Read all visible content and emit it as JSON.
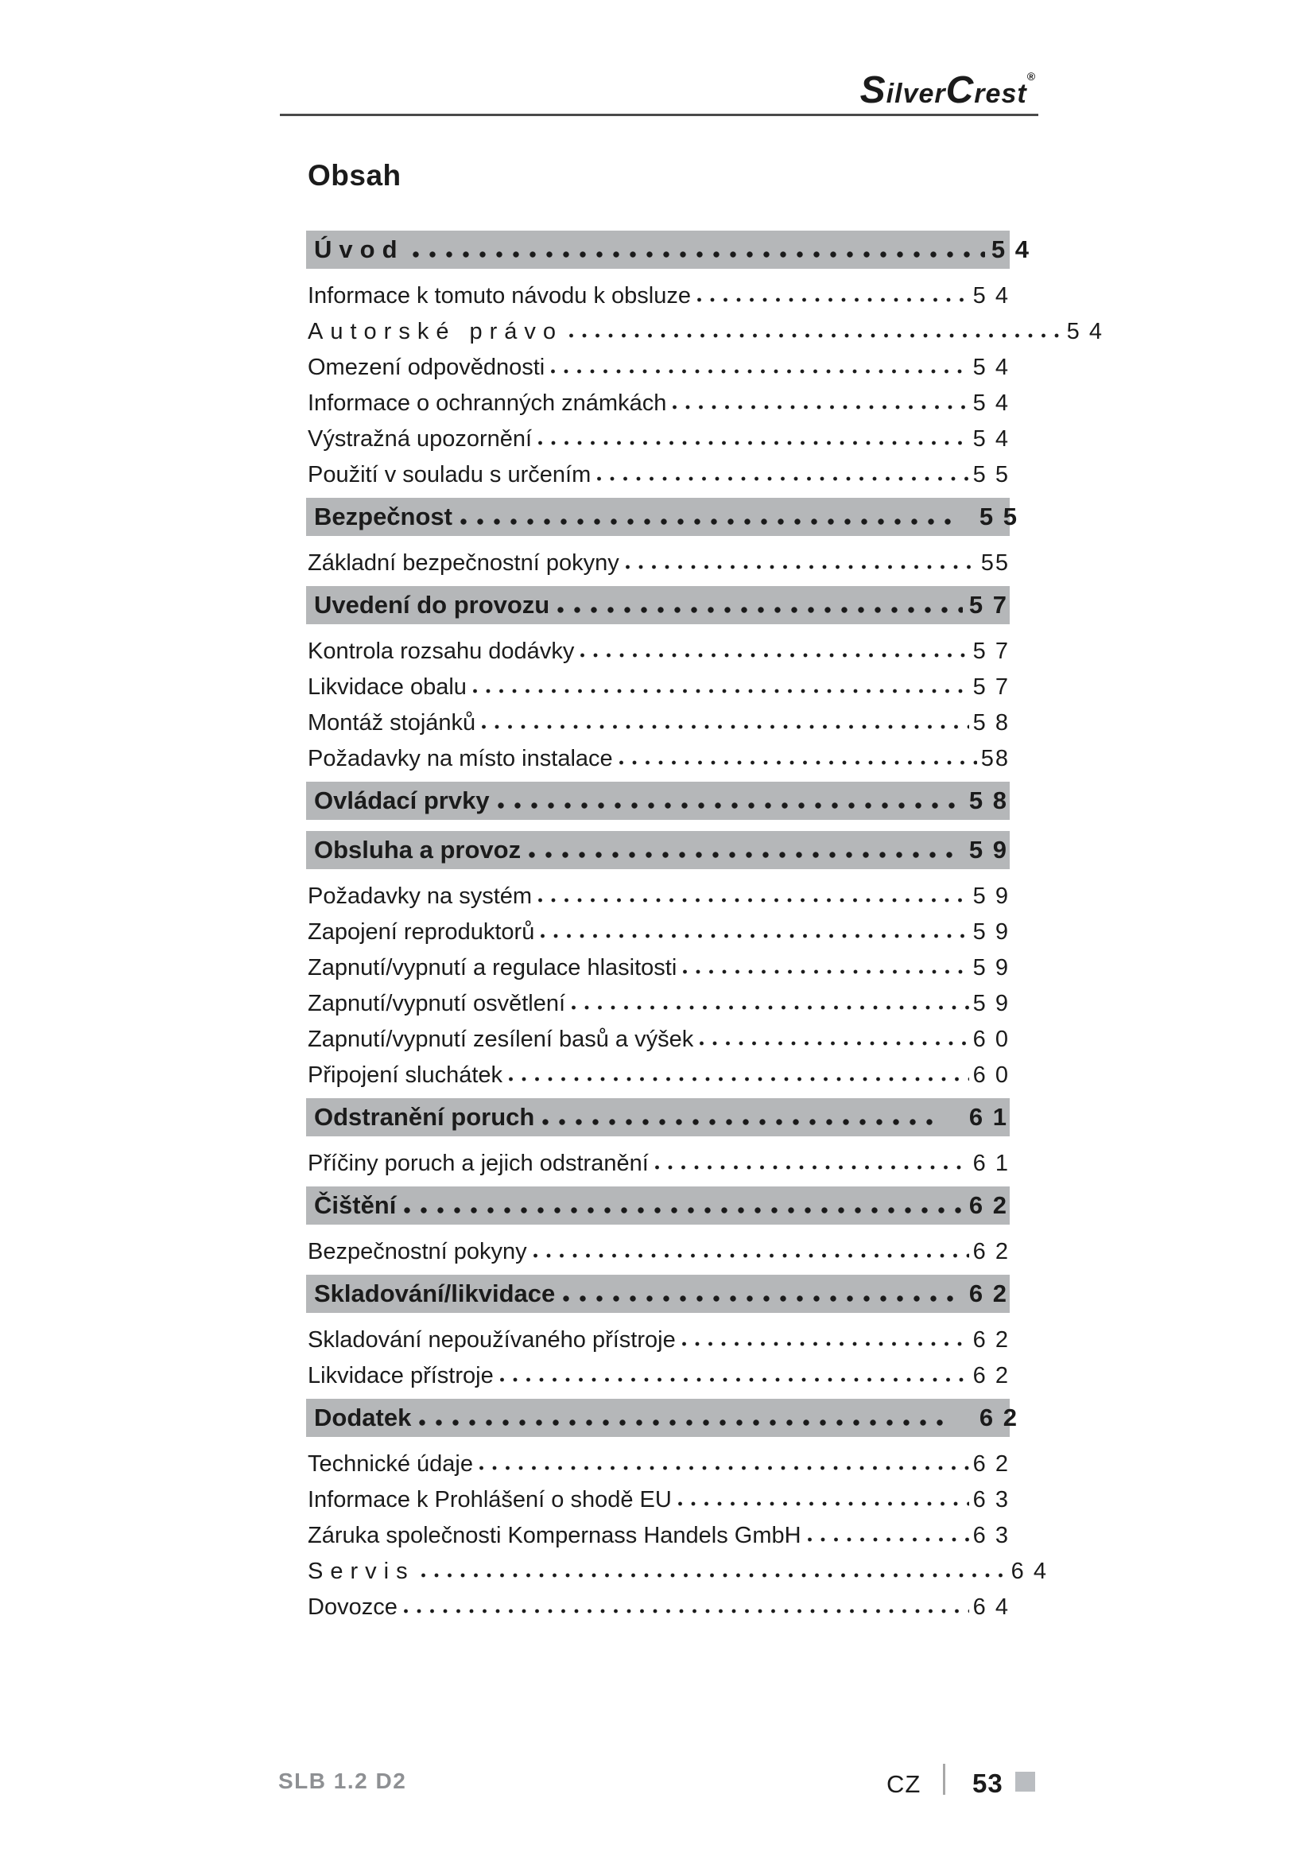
{
  "page": {
    "brand": {
      "logo_part1": "Silver",
      "logo_part2": "Crest",
      "registered": "®"
    },
    "title": "Obsah",
    "colors": {
      "bar_gray": "#b5b7b9",
      "text_black": "#1b1b1b",
      "footer_gray": "#8e9093",
      "square_gray": "#babdc1",
      "rule_gray": "#4a4a4a",
      "divider_gray": "#a8a8a8"
    },
    "toc": {
      "rows": [
        {
          "type": "section",
          "label": "Úvod",
          "page": "5 4",
          "label_spaced": true,
          "overhang": 28
        },
        {
          "type": "entry",
          "label": "Informace k tomuto návodu k obsluze",
          "page": "5 4"
        },
        {
          "type": "entry",
          "label": "Autorské právo",
          "page": "5 4",
          "label_spaced": true,
          "overhang": 118
        },
        {
          "type": "entry",
          "label": "Omezení odpovědnosti",
          "page": "5 4"
        },
        {
          "type": "entry",
          "label": "Informace o ochranných známkách",
          "page": "5 4"
        },
        {
          "type": "entry",
          "label": "Výstražná upozornění",
          "page": "5 4"
        },
        {
          "type": "entry",
          "label": "Použití v souladu s určením",
          "page": "5 5"
        },
        {
          "type": "section",
          "label": "Bezpečnost",
          "page": "5 5",
          "pre_gap": true,
          "overhang": 13
        },
        {
          "type": "entry",
          "label": "Základní bezpečnostní pokyny",
          "page": "55"
        },
        {
          "type": "section",
          "label": "Uvedení do provozu",
          "page": "5 7"
        },
        {
          "type": "entry",
          "label": "Kontrola rozsahu dodávky",
          "page": "5 7"
        },
        {
          "type": "entry",
          "label": "Likvidace obalu",
          "page": "5 7"
        },
        {
          "type": "entry",
          "label": "Montáž stojánků",
          "page": "5 8"
        },
        {
          "type": "entry",
          "label": "Požadavky na místo instalace",
          "page": "58"
        },
        {
          "type": "section",
          "label": "Ovládací prvky",
          "page": "5 8"
        },
        {
          "type": "section",
          "label": "Obsluha a provoz",
          "page": "5 9"
        },
        {
          "type": "entry",
          "label": "Požadavky na systém",
          "page": "5 9"
        },
        {
          "type": "entry",
          "label": "Zapojení reproduktorů",
          "page": "5 9"
        },
        {
          "type": "entry",
          "label": "Zapnutí/vypnutí a regulace hlasitosti",
          "page": "5 9"
        },
        {
          "type": "entry",
          "label": "Zapnutí/vypnutí osvětlení",
          "page": "5 9"
        },
        {
          "type": "entry",
          "label": "Zapnutí/vypnutí zesílení basů a výšek",
          "page": "6 0"
        },
        {
          "type": "entry",
          "label": "Připojení sluchátek",
          "page": "6 0"
        },
        {
          "type": "section",
          "label": "Odstranění poruch",
          "page": "6 1",
          "pre_gap": true
        },
        {
          "type": "entry",
          "label": "Příčiny poruch a jejich odstranění",
          "page": "6 1"
        },
        {
          "type": "section",
          "label": "Čištění",
          "page": "6 2"
        },
        {
          "type": "entry",
          "label": "Bezpečnostní pokyny",
          "page": "6 2"
        },
        {
          "type": "section",
          "label": "Skladování/likvidace",
          "page": "6 2"
        },
        {
          "type": "entry",
          "label": "Skladování nepoužívaného přístroje",
          "page": "6 2"
        },
        {
          "type": "entry",
          "label": "Likvidace přístroje",
          "page": "6 2"
        },
        {
          "type": "section",
          "label": "Dodatek",
          "page": "6 2",
          "pre_gap": true,
          "overhang": 13
        },
        {
          "type": "entry",
          "label": "Technické údaje",
          "page": "6 2"
        },
        {
          "type": "entry",
          "label": "Informace k Prohlášení o shodě EU",
          "page": "6 3"
        },
        {
          "type": "entry",
          "label": "Záruka společnosti Kompernass Handels GmbH",
          "page": "6 3"
        },
        {
          "type": "entry",
          "label": "Servis",
          "page": "6 4",
          "label_spaced": true,
          "overhang": 48
        },
        {
          "type": "entry",
          "label": "Dovozce",
          "page": "6 4"
        }
      ]
    },
    "footer": {
      "model": "SLB 1.2 D2",
      "language": "CZ",
      "page_number": "53"
    }
  }
}
